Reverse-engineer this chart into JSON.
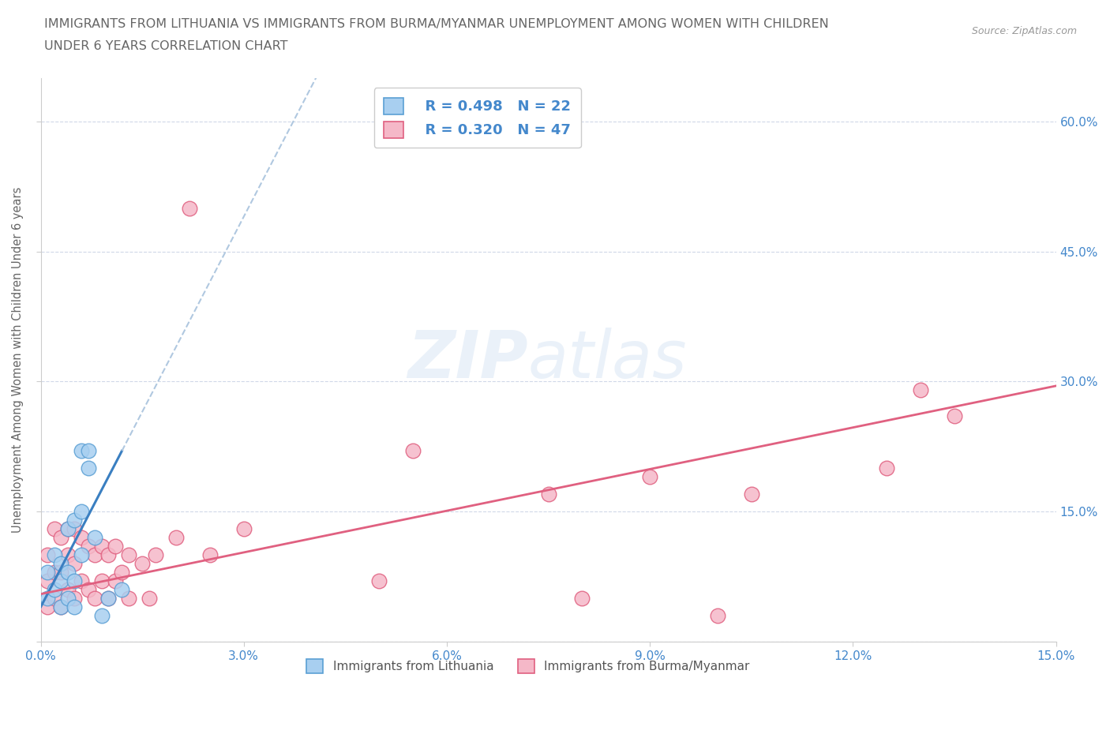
{
  "title_line1": "IMMIGRANTS FROM LITHUANIA VS IMMIGRANTS FROM BURMA/MYANMAR UNEMPLOYMENT AMONG WOMEN WITH CHILDREN",
  "title_line2": "UNDER 6 YEARS CORRELATION CHART",
  "source": "Source: ZipAtlas.com",
  "ylabel": "Unemployment Among Women with Children Under 6 years",
  "xmin": 0.0,
  "xmax": 0.15,
  "ymin": 0.0,
  "ymax": 0.65,
  "yticks": [
    0.0,
    0.15,
    0.3,
    0.45,
    0.6
  ],
  "xticks": [
    0.0,
    0.03,
    0.06,
    0.09,
    0.12,
    0.15
  ],
  "xtick_labels": [
    "0.0%",
    "3.0%",
    "6.0%",
    "9.0%",
    "12.0%",
    "15.0%"
  ],
  "ytick_labels": [
    "",
    "15.0%",
    "30.0%",
    "45.0%",
    "60.0%"
  ],
  "legend_r1": "R = 0.498",
  "legend_n1": "N = 22",
  "legend_r2": "R = 0.320",
  "legend_n2": "N = 47",
  "legend_label1": "Immigrants from Lithuania",
  "legend_label2": "Immigrants from Burma/Myanmar",
  "color_blue": "#a8cff0",
  "color_pink": "#f5b8c8",
  "color_blue_edge": "#5a9fd4",
  "color_pink_edge": "#e06080",
  "color_blue_line": "#3a7fc1",
  "color_pink_line": "#e06080",
  "color_dashed_line": "#b0c8e0",
  "background_color": "#ffffff",
  "grid_color": "#d0d8e8",
  "title_color": "#666666",
  "axis_color": "#4488cc",
  "scatter_blue_x": [
    0.001,
    0.001,
    0.002,
    0.002,
    0.003,
    0.003,
    0.003,
    0.004,
    0.004,
    0.004,
    0.005,
    0.005,
    0.005,
    0.006,
    0.006,
    0.006,
    0.007,
    0.007,
    0.008,
    0.009,
    0.01,
    0.012
  ],
  "scatter_blue_y": [
    0.05,
    0.08,
    0.06,
    0.1,
    0.04,
    0.07,
    0.09,
    0.05,
    0.13,
    0.08,
    0.04,
    0.07,
    0.14,
    0.1,
    0.15,
    0.22,
    0.2,
    0.22,
    0.12,
    0.03,
    0.05,
    0.06
  ],
  "scatter_pink_x": [
    0.001,
    0.001,
    0.001,
    0.002,
    0.002,
    0.002,
    0.003,
    0.003,
    0.003,
    0.004,
    0.004,
    0.004,
    0.005,
    0.005,
    0.005,
    0.006,
    0.006,
    0.007,
    0.007,
    0.008,
    0.008,
    0.009,
    0.009,
    0.01,
    0.01,
    0.011,
    0.011,
    0.012,
    0.013,
    0.013,
    0.015,
    0.016,
    0.017,
    0.02,
    0.022,
    0.025,
    0.03,
    0.05,
    0.055,
    0.075,
    0.08,
    0.09,
    0.1,
    0.105,
    0.125,
    0.13,
    0.135
  ],
  "scatter_pink_y": [
    0.04,
    0.07,
    0.1,
    0.05,
    0.08,
    0.13,
    0.04,
    0.08,
    0.12,
    0.06,
    0.1,
    0.13,
    0.05,
    0.09,
    0.13,
    0.07,
    0.12,
    0.06,
    0.11,
    0.05,
    0.1,
    0.07,
    0.11,
    0.05,
    0.1,
    0.07,
    0.11,
    0.08,
    0.05,
    0.1,
    0.09,
    0.05,
    0.1,
    0.12,
    0.5,
    0.1,
    0.13,
    0.07,
    0.22,
    0.17,
    0.05,
    0.19,
    0.03,
    0.17,
    0.2,
    0.29,
    0.26
  ],
  "blue_line_solid_xmax": 0.012,
  "blue_line_intercept": 0.04,
  "blue_line_slope": 15.0,
  "pink_line_intercept": 0.055,
  "pink_line_slope": 1.6
}
